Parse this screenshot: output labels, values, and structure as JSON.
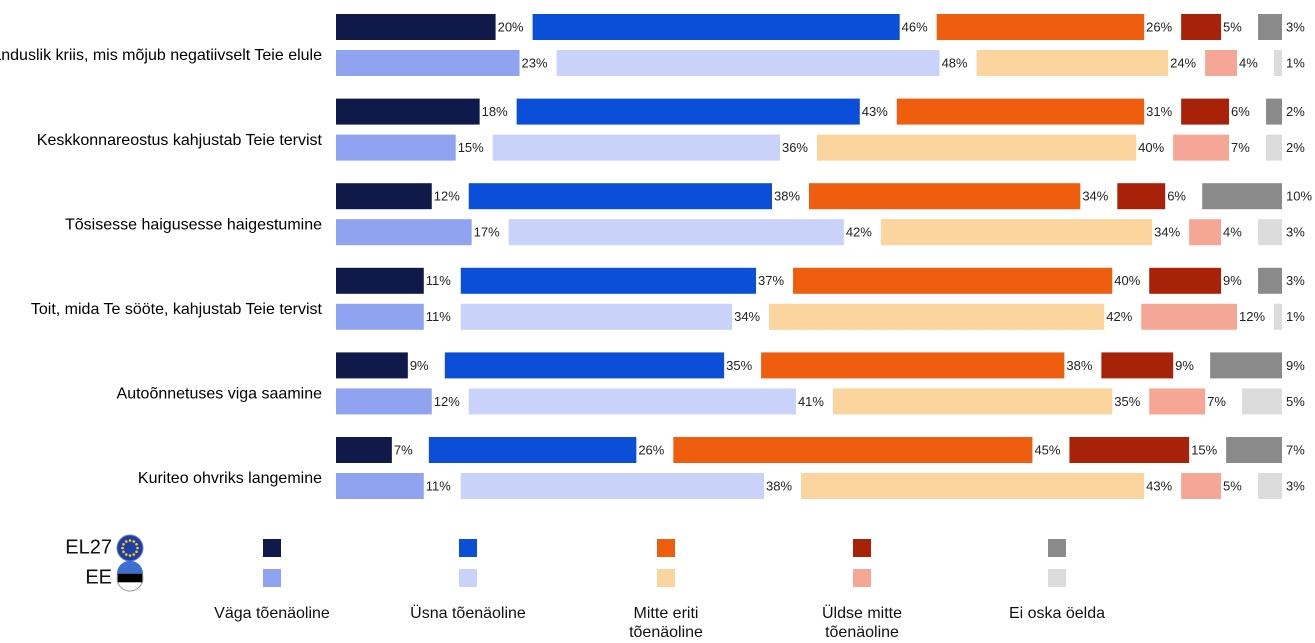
{
  "chart_data": {
    "type": "bar",
    "orientation": "horizontal",
    "stacked": true,
    "normalized_percent": true,
    "categories": [
      "Majanduslik kriis, mis mõjub negatiivselt Teie elule",
      "Keskkonnareostus kahjustab Teie tervist",
      "Tõsisesse haigusesse haigestumine",
      "Toit, mida Te sööte, kahjustab Teie tervist",
      "Autoõnnetuses viga saamine",
      "Kuriteo ohvriks langemine"
    ],
    "groups": [
      {
        "name": "EL27",
        "flag": "eu-flag-icon"
      },
      {
        "name": "EE",
        "flag": "estonia-flag-icon"
      }
    ],
    "series": [
      {
        "name": "Väga tõenäoline",
        "colors": {
          "EL27": "#0f1a4a",
          "EE": "#8fa3f0"
        },
        "EL27": [
          20,
          18,
          12,
          11,
          9,
          7
        ],
        "EE": [
          23,
          15,
          17,
          11,
          12,
          11
        ]
      },
      {
        "name": "Üsna tõenäoline",
        "colors": {
          "EL27": "#0b4fd8",
          "EE": "#c9d3f9"
        },
        "EL27": [
          46,
          43,
          38,
          37,
          35,
          26
        ],
        "EE": [
          48,
          36,
          42,
          34,
          41,
          38
        ]
      },
      {
        "name": "Mitte eriti tõenäoline",
        "colors": {
          "EL27": "#ef5d0e",
          "EE": "#fbd59d"
        },
        "EL27": [
          26,
          31,
          34,
          40,
          38,
          45
        ],
        "EE": [
          24,
          40,
          34,
          42,
          35,
          43
        ]
      },
      {
        "name": "Üldse mitte tõenäoline",
        "colors": {
          "EL27": "#a8220a",
          "EE": "#f6a695"
        },
        "EL27": [
          5,
          6,
          6,
          9,
          9,
          15
        ],
        "EE": [
          4,
          7,
          4,
          12,
          7,
          5
        ]
      },
      {
        "name": "Ei oska öelda",
        "colors": {
          "EL27": "#8a8a8a",
          "EE": "#dcdcdc"
        },
        "EL27": [
          3,
          2,
          10,
          3,
          9,
          7
        ],
        "EE": [
          1,
          2,
          3,
          1,
          5,
          3
        ]
      }
    ],
    "value_suffix": "%",
    "legend_placement": "bottom",
    "grid": false
  }
}
